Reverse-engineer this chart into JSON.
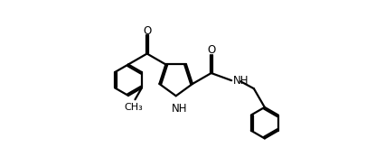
{
  "bg_color": "#ffffff",
  "line_color": "#000000",
  "line_width": 1.6,
  "font_size": 8.5,
  "fig_width": 4.06,
  "fig_height": 1.84,
  "dpi": 100,
  "xlim": [
    0,
    10.5
  ],
  "ylim": [
    -0.5,
    5.0
  ]
}
